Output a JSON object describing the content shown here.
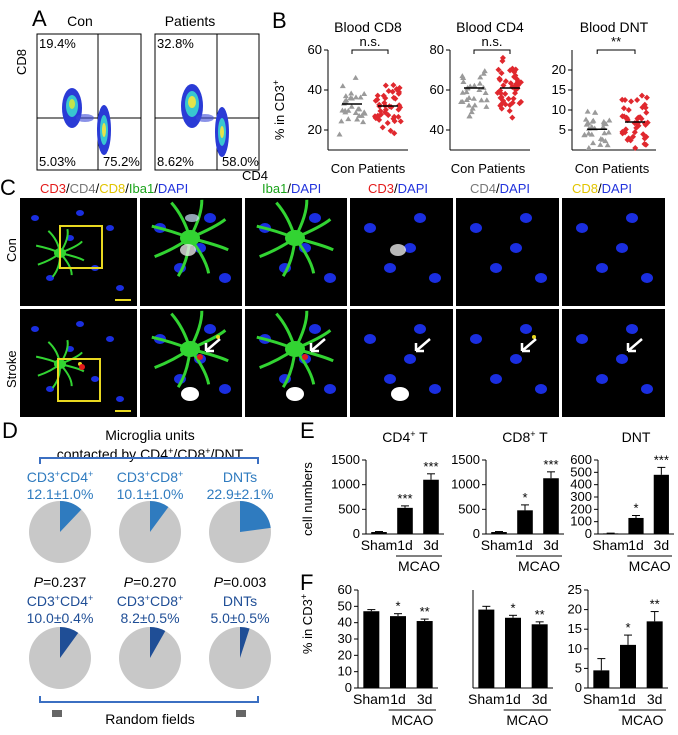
{
  "panel_labels": {
    "A": "A",
    "B": "B",
    "C": "C",
    "D": "D",
    "E": "E",
    "F": "F"
  },
  "panelA": {
    "axis_x": "CD4",
    "axis_y": "CD8",
    "plots": [
      {
        "title": "Con",
        "ul": "19.4%",
        "ll": "5.03%",
        "lr": "75.2%"
      },
      {
        "title": "Patients",
        "ul": "32.8%",
        "ll": "8.62%",
        "lr": "58.0%"
      }
    ]
  },
  "panelB": {
    "ylabel": "% in CD3",
    "ylabel_sup": "+",
    "group_labels": "Con Patients"
  },
  "panelC": {
    "channels": [
      {
        "parts": [
          {
            "t": "CD3",
            "c": "#e31b1b"
          },
          {
            "t": "/",
            "c": "#000"
          },
          {
            "t": "CD4",
            "c": "#777"
          },
          {
            "t": "/",
            "c": "#000"
          },
          {
            "t": "CD8",
            "c": "#e1c400"
          },
          {
            "t": "/",
            "c": "#000"
          },
          {
            "t": "Iba1",
            "c": "#1aa31a"
          },
          {
            "t": "/",
            "c": "#000"
          },
          {
            "t": "DAPI",
            "c": "#2233dd"
          }
        ]
      },
      {
        "parts": [
          {
            "t": "Iba1",
            "c": "#1aa31a"
          },
          {
            "t": "/",
            "c": "#000"
          },
          {
            "t": "DAPI",
            "c": "#2233dd"
          }
        ]
      },
      {
        "parts": [
          {
            "t": "CD3",
            "c": "#e31b1b"
          },
          {
            "t": "/",
            "c": "#000"
          },
          {
            "t": "DAPI",
            "c": "#2233dd"
          }
        ]
      },
      {
        "parts": [
          {
            "t": "CD4",
            "c": "#777"
          },
          {
            "t": "/",
            "c": "#000"
          },
          {
            "t": "DAPI",
            "c": "#2233dd"
          }
        ]
      },
      {
        "parts": [
          {
            "t": "CD8",
            "c": "#e1c400"
          },
          {
            "t": "/",
            "c": "#000"
          },
          {
            "t": "DAPI",
            "c": "#2233dd"
          }
        ]
      }
    ],
    "rows": [
      "Con",
      "Stroke"
    ]
  },
  "panelD": {
    "title_line1": "Microglia units",
    "title_line2": "contacted by CD4",
    "title_line2b": "/CD8",
    "title_line2c": "/DNT",
    "bottom_label": "Random fields",
    "top_row": [
      {
        "label_a": "CD3",
        "label_b": "CD4",
        "value": "12.1±1.0%"
      },
      {
        "label_a": "CD3",
        "label_b": "CD8",
        "value": "10.1±1.0%"
      },
      {
        "label_a": "DNTs",
        "label_b": "",
        "value": "22.9±2.1%"
      }
    ],
    "p_values": [
      "=0.237",
      "=0.270",
      "=0.003"
    ],
    "p_letter": "P",
    "bottom_row": [
      {
        "label_a": "CD3",
        "label_b": "CD4",
        "value": "10.0±0.4%"
      },
      {
        "label_a": "CD3",
        "label_b": "CD8",
        "value": "8.2±0.5%"
      },
      {
        "label_a": "DNTs",
        "label_b": "",
        "value": "5.0±0.5%"
      }
    ],
    "colors": {
      "top": "#2f7bbf",
      "bottom": "#1f4e96",
      "rest": "#c8c8c8"
    }
  },
  "chart_data": [
    {
      "panel": "B",
      "type": "scatter",
      "title": "Blood CD8",
      "categories": [
        "Con",
        "Patients"
      ],
      "ylim": [
        10,
        60
      ],
      "yticks": [
        20,
        40,
        60
      ],
      "means": [
        33,
        32
      ],
      "sig": "n.s.",
      "ylabel": "% in CD3+"
    },
    {
      "panel": "B",
      "type": "scatter",
      "title": "Blood CD4",
      "categories": [
        "Con",
        "Patients"
      ],
      "ylim": [
        30,
        80
      ],
      "yticks": [
        40,
        60,
        80
      ],
      "means": [
        61,
        61
      ],
      "sig": "n.s."
    },
    {
      "panel": "B",
      "type": "scatter",
      "title": "Blood DNT",
      "categories": [
        "Con",
        "Patients"
      ],
      "ylim": [
        0,
        25
      ],
      "yticks": [
        5,
        10,
        15,
        20
      ],
      "means": [
        5.2,
        7
      ],
      "sig": "**"
    },
    {
      "panel": "E",
      "type": "bar",
      "title": "CD4",
      "title_sup": "+",
      "title_suffix": " T",
      "categories": [
        "Sham",
        "1d",
        "3d"
      ],
      "values": [
        40,
        530,
        1100
      ],
      "errors": [
        10,
        40,
        120
      ],
      "ylim": [
        0,
        1500
      ],
      "yticks": [
        0,
        500,
        1000,
        1500
      ],
      "stars": [
        "",
        "***",
        "***"
      ],
      "ylabel": "cell numbers",
      "group": "MCAO"
    },
    {
      "panel": "E",
      "type": "bar",
      "title": "CD8",
      "title_sup": "+",
      "title_suffix": " T",
      "categories": [
        "Sham",
        "1d",
        "3d"
      ],
      "values": [
        40,
        480,
        1130
      ],
      "errors": [
        10,
        110,
        130
      ],
      "ylim": [
        0,
        1500
      ],
      "yticks": [
        0,
        500,
        1000,
        1500
      ],
      "stars": [
        "",
        "*",
        "***"
      ],
      "group": "MCAO"
    },
    {
      "panel": "E",
      "type": "bar",
      "title": "DNT",
      "categories": [
        "Sham",
        "1d",
        "3d"
      ],
      "values": [
        5,
        130,
        480
      ],
      "errors": [
        2,
        20,
        60
      ],
      "ylim": [
        0,
        600
      ],
      "yticks": [
        0,
        100,
        200,
        300,
        400,
        500,
        600
      ],
      "stars": [
        "",
        "*",
        "***"
      ],
      "group": "MCAO"
    },
    {
      "panel": "F",
      "type": "bar",
      "categories": [
        "Sham",
        "1d",
        "3d"
      ],
      "values": [
        47,
        44,
        41
      ],
      "errors": [
        1,
        1.5,
        1.2
      ],
      "ylim": [
        0,
        60
      ],
      "yticks": [
        0,
        10,
        20,
        30,
        40,
        50,
        60
      ],
      "stars": [
        "",
        "*",
        "**"
      ],
      "ylabel": "% in CD3+",
      "group": "MCAO"
    },
    {
      "panel": "F",
      "type": "bar",
      "categories": [
        "Sham",
        "1d",
        "3d"
      ],
      "values": [
        48,
        43,
        39
      ],
      "errors": [
        2,
        1.5,
        1.5
      ],
      "ylim": [
        0,
        60
      ],
      "yticks": [],
      "stars": [
        "",
        "*",
        "**"
      ],
      "group": "MCAO"
    },
    {
      "panel": "F",
      "type": "bar",
      "categories": [
        "Sham",
        "1d",
        "3d"
      ],
      "values": [
        4.5,
        11,
        17
      ],
      "errors": [
        3,
        2.5,
        2.5
      ],
      "ylim": [
        0,
        25
      ],
      "yticks": [
        0,
        5,
        10,
        15,
        20,
        25
      ],
      "stars": [
        "",
        "*",
        "**"
      ],
      "group": "MCAO"
    }
  ]
}
